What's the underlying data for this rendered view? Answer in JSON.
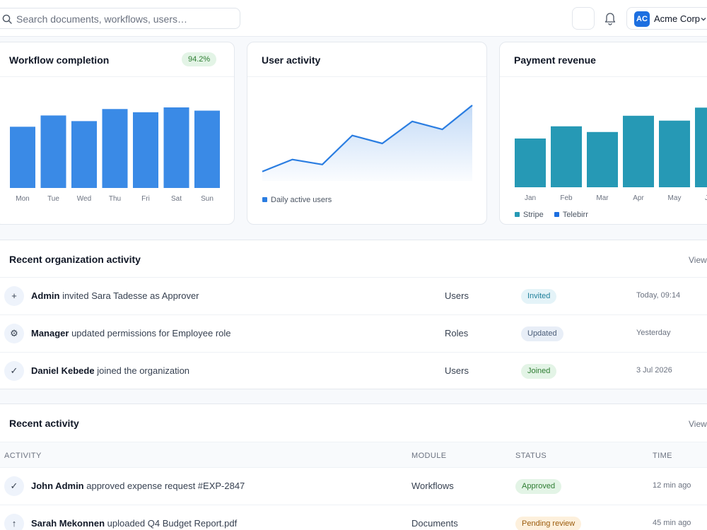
{
  "header": {
    "search_placeholder": "Search documents, workflows, users…",
    "org_initials": "AC",
    "org_name": "Acme Corp"
  },
  "cards": {
    "workflow": {
      "title": "Workflow completion",
      "badge": "94.2%"
    },
    "users": {
      "title": "User activity"
    },
    "payments": {
      "title": "Payment revenue"
    }
  },
  "chart_data": [
    {
      "type": "bar",
      "title": "Workflow completion",
      "categories": [
        "Mon",
        "Tue",
        "Wed",
        "Thu",
        "Fri",
        "Sat",
        "Sun"
      ],
      "values": [
        76,
        90,
        83,
        98,
        94,
        100,
        96
      ],
      "ylim": [
        0,
        100
      ],
      "color": "#3a8ae6",
      "grid": false
    },
    {
      "type": "area",
      "title": "User activity",
      "series": [
        {
          "name": "Daily active users",
          "values": [
            22,
            34,
            29,
            58,
            50,
            72,
            64,
            88
          ]
        }
      ],
      "ylim": [
        0,
        100
      ],
      "color": "#2a7de1",
      "grid": false
    },
    {
      "type": "bar",
      "title": "Payment revenue",
      "categories": [
        "Jan",
        "Feb",
        "Mar",
        "Apr",
        "May",
        "Jun"
      ],
      "series": [
        {
          "name": "Stripe",
          "values": [
            60,
            75,
            68,
            88,
            82,
            98
          ]
        }
      ],
      "legend": [
        "Stripe",
        "Telebirr"
      ],
      "legend_colors": [
        "#2699b5",
        "#1d6fe0"
      ],
      "ylim": [
        0,
        100
      ],
      "color": "#2699b5",
      "grid": false
    }
  ],
  "org_activity": {
    "title": "Recent organization activity",
    "view_label": "View",
    "rows": [
      {
        "icon": "+",
        "actor": "Admin",
        "text": " invited Sara Tadesse as Approver",
        "module": "Users",
        "status": "Invited",
        "time": "Today, 09:14"
      },
      {
        "icon": "⚙",
        "actor": "Manager",
        "text": " updated permissions for Employee role",
        "module": "Roles",
        "status": "Updated",
        "time": "Yesterday"
      },
      {
        "icon": "✓",
        "actor": "Daniel Kebede",
        "text": " joined the organization",
        "module": "Users",
        "status": "Joined",
        "time": "3 Jul 2026"
      }
    ]
  },
  "recent_activity": {
    "title": "Recent activity",
    "view_label": "View",
    "columns": [
      "ACTIVITY",
      "MODULE",
      "STATUS",
      "TIME"
    ],
    "rows": [
      {
        "icon": "✓",
        "actor": "John Admin",
        "text": " approved expense request #EXP-2847",
        "module": "Workflows",
        "status": "Approved",
        "time": "12 min ago"
      },
      {
        "icon": "↑",
        "actor": "Sarah Mekonnen",
        "text": " uploaded Q4 Budget Report.pdf",
        "module": "Documents",
        "status": "Pending review",
        "time": "45 min ago"
      }
    ]
  }
}
